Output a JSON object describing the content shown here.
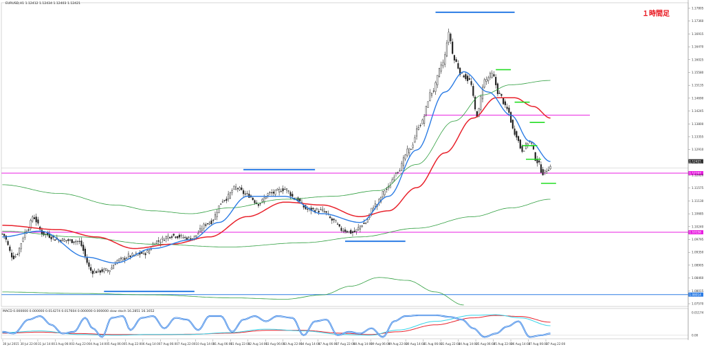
{
  "header": {
    "symbol_line": "EURUSD,H1  1.12412 1.12434 1.12403 1.12421",
    "annotation": "１時間足"
  },
  "indicator_header": "MACD 0.000000 0.000000 0.014274 0.017604 0.000000 0.000000  slow stoch 16.2851 16.1652",
  "colors": {
    "background": "#ffffff",
    "candles": "#222222",
    "ma_fast": "#2a7be4",
    "ma_mid": "#e8202a",
    "ma_slow": "#2e9e3e",
    "support_resistance": "#e81ee0",
    "annotation_lines": "#2a7be4",
    "green_marks": "#22dd22",
    "osc_blue": "#2a7be4",
    "osc_cyan": "#35d3e8",
    "osc_red": "#e8202a",
    "annotation_text": "#e8111a"
  },
  "chart_data": [
    {
      "type": "candlestick",
      "title": "EURUSD,H1",
      "ylim": [
        1.076,
        1.1808
      ],
      "y_ticks": [
        "1.17805",
        "1.17360",
        "1.16915",
        "1.16470",
        "1.16025",
        "1.15580",
        "1.15135",
        "1.14690",
        "1.14245",
        "1.13800",
        "1.13355",
        "1.12910",
        "1.12465",
        "1.12020",
        "1.11575",
        "1.11130",
        "1.10685",
        "1.10240",
        "1.09795",
        "1.09350",
        "1.08905",
        "1.08460",
        "1.08015",
        "1.07570"
      ],
      "current_price": "1.12421",
      "price_boxes": [
        "1.12421",
        "1.12197",
        "1.10158",
        "1.08014"
      ],
      "horizontal_lines": [
        {
          "kind": "magenta",
          "price": 1.142,
          "label": ""
        },
        {
          "kind": "magenta",
          "price": 1.122,
          "label": "1.12197"
        },
        {
          "kind": "magenta",
          "price": 1.1016,
          "label": "1.10158"
        },
        {
          "kind": "blue",
          "price": 1.0801,
          "label": "1.08014"
        }
      ],
      "x_labels": [
        "30 Jul 2015",
        "30 Jul 22:00",
        "31 Jul 14:00",
        "3 Aug 06:00",
        "3 Aug 22:00",
        "4 Aug 14:00",
        "5 Aug 06:00",
        "5 Aug 22:00",
        "6 Aug 14:00",
        "7 Aug 06:00",
        "7 Aug 22:00",
        "10 Aug 14:00",
        "11 Aug 06:00",
        "11 Aug 22:00",
        "12 Aug 14:00",
        "13 Aug 06:00",
        "13 Aug 22:00",
        "14 Aug 14:00",
        "17 Aug 06:00",
        "17 Aug 22:00",
        "18 Aug 14:00",
        "19 Aug 06:00",
        "19 Aug 22:00",
        "20 Aug 14:00",
        "21 Aug 06:00",
        "21 Aug 22:00",
        "24 Aug 14:00",
        "25 Aug 06:00",
        "25 Aug 22:00",
        "26 Aug 14:00",
        "27 Aug 06:00",
        "27 Aug 22:00"
      ],
      "key_points": [
        {
          "idx": 0,
          "p": 1.101
        },
        {
          "idx": 6,
          "p": 1.093
        },
        {
          "idx": 14,
          "p": 1.103
        },
        {
          "idx": 16,
          "p": 1.107
        },
        {
          "idx": 22,
          "p": 1.101
        },
        {
          "idx": 30,
          "p": 1.099
        },
        {
          "idx": 40,
          "p": 1.0985
        },
        {
          "idx": 48,
          "p": 1.088
        },
        {
          "idx": 56,
          "p": 1.0885
        },
        {
          "idx": 62,
          "p": 1.092
        },
        {
          "idx": 68,
          "p": 1.0935
        },
        {
          "idx": 76,
          "p": 1.0945
        },
        {
          "idx": 82,
          "p": 1.0985
        },
        {
          "idx": 90,
          "p": 1.1005
        },
        {
          "idx": 100,
          "p": 1.0995
        },
        {
          "idx": 110,
          "p": 1.105
        },
        {
          "idx": 118,
          "p": 1.113
        },
        {
          "idx": 124,
          "p": 1.117
        },
        {
          "idx": 130,
          "p": 1.1145
        },
        {
          "idx": 136,
          "p": 1.1115
        },
        {
          "idx": 142,
          "p": 1.115
        },
        {
          "idx": 150,
          "p": 1.1165
        },
        {
          "idx": 156,
          "p": 1.113
        },
        {
          "idx": 162,
          "p": 1.1095
        },
        {
          "idx": 170,
          "p": 1.109
        },
        {
          "idx": 176,
          "p": 1.1055
        },
        {
          "idx": 180,
          "p": 1.1025
        },
        {
          "idx": 186,
          "p": 1.1015
        },
        {
          "idx": 192,
          "p": 1.1045
        },
        {
          "idx": 198,
          "p": 1.111
        },
        {
          "idx": 204,
          "p": 1.1165
        },
        {
          "idx": 210,
          "p": 1.123
        },
        {
          "idx": 216,
          "p": 1.13
        },
        {
          "idx": 222,
          "p": 1.139
        },
        {
          "idx": 228,
          "p": 1.15
        },
        {
          "idx": 234,
          "p": 1.16
        },
        {
          "idx": 237,
          "p": 1.17
        },
        {
          "idx": 240,
          "p": 1.161
        },
        {
          "idx": 244,
          "p": 1.156
        },
        {
          "idx": 248,
          "p": 1.154
        },
        {
          "idx": 252,
          "p": 1.142
        },
        {
          "idx": 256,
          "p": 1.154
        },
        {
          "idx": 260,
          "p": 1.156
        },
        {
          "idx": 264,
          "p": 1.149
        },
        {
          "idx": 268,
          "p": 1.144
        },
        {
          "idx": 272,
          "p": 1.136
        },
        {
          "idx": 276,
          "p": 1.13
        },
        {
          "idx": 280,
          "p": 1.133
        },
        {
          "idx": 284,
          "p": 1.126
        },
        {
          "idx": 287,
          "p": 1.122
        },
        {
          "idx": 291,
          "p": 1.1242
        }
      ],
      "ma_fast": [
        {
          "idx": 0,
          "p": 1.1
        },
        {
          "idx": 20,
          "p": 1.102
        },
        {
          "idx": 45,
          "p": 1.093
        },
        {
          "idx": 60,
          "p": 1.091
        },
        {
          "idx": 80,
          "p": 1.096
        },
        {
          "idx": 100,
          "p": 1.099
        },
        {
          "idx": 115,
          "p": 1.105
        },
        {
          "idx": 130,
          "p": 1.114
        },
        {
          "idx": 150,
          "p": 1.114
        },
        {
          "idx": 170,
          "p": 1.108
        },
        {
          "idx": 190,
          "p": 1.105
        },
        {
          "idx": 205,
          "p": 1.114
        },
        {
          "idx": 220,
          "p": 1.13
        },
        {
          "idx": 235,
          "p": 1.15
        },
        {
          "idx": 245,
          "p": 1.157
        },
        {
          "idx": 258,
          "p": 1.15
        },
        {
          "idx": 270,
          "p": 1.142
        },
        {
          "idx": 280,
          "p": 1.133
        },
        {
          "idx": 291,
          "p": 1.126
        }
      ],
      "ma_mid": [
        {
          "idx": 0,
          "p": 1.104
        },
        {
          "idx": 30,
          "p": 1.1025
        },
        {
          "idx": 50,
          "p": 1.1
        },
        {
          "idx": 70,
          "p": 1.096
        },
        {
          "idx": 90,
          "p": 1.0975
        },
        {
          "idx": 110,
          "p": 1.1
        },
        {
          "idx": 130,
          "p": 1.107
        },
        {
          "idx": 150,
          "p": 1.112
        },
        {
          "idx": 170,
          "p": 1.111
        },
        {
          "idx": 190,
          "p": 1.107
        },
        {
          "idx": 205,
          "p": 1.109
        },
        {
          "idx": 220,
          "p": 1.117
        },
        {
          "idx": 235,
          "p": 1.129
        },
        {
          "idx": 250,
          "p": 1.141
        },
        {
          "idx": 262,
          "p": 1.148
        },
        {
          "idx": 272,
          "p": 1.148
        },
        {
          "idx": 282,
          "p": 1.145
        },
        {
          "idx": 291,
          "p": 1.141
        }
      ],
      "ma_slow": [
        {
          "idx": 0,
          "p": 1.118
        },
        {
          "idx": 30,
          "p": 1.115
        },
        {
          "idx": 60,
          "p": 1.111
        },
        {
          "idx": 80,
          "p": 1.109
        },
        {
          "idx": 100,
          "p": 1.108
        },
        {
          "idx": 120,
          "p": 1.11
        },
        {
          "idx": 150,
          "p": 1.113
        },
        {
          "idx": 175,
          "p": 1.114
        },
        {
          "idx": 200,
          "p": 1.116
        },
        {
          "idx": 220,
          "p": 1.125
        },
        {
          "idx": 240,
          "p": 1.14
        },
        {
          "idx": 255,
          "p": 1.149
        },
        {
          "idx": 270,
          "p": 1.1525
        },
        {
          "idx": 291,
          "p": 1.154
        }
      ],
      "ma_slow2": [
        {
          "idx": 0,
          "p": 1.102
        },
        {
          "idx": 40,
          "p": 1.1
        },
        {
          "idx": 80,
          "p": 1.0975
        },
        {
          "idx": 120,
          "p": 1.0965
        },
        {
          "idx": 160,
          "p": 1.098
        },
        {
          "idx": 190,
          "p": 1.1
        },
        {
          "idx": 220,
          "p": 1.103
        },
        {
          "idx": 250,
          "p": 1.107
        },
        {
          "idx": 270,
          "p": 1.11
        },
        {
          "idx": 291,
          "p": 1.113
        }
      ],
      "ma_bottom": [
        {
          "idx": 0,
          "p": 1.081
        },
        {
          "idx": 40,
          "p": 1.0805
        },
        {
          "idx": 80,
          "p": 1.08
        },
        {
          "idx": 120,
          "p": 1.079
        },
        {
          "idx": 150,
          "p": 1.0785
        },
        {
          "idx": 170,
          "p": 1.08
        },
        {
          "idx": 185,
          "p": 1.083
        },
        {
          "idx": 200,
          "p": 1.086
        },
        {
          "idx": 215,
          "p": 1.085
        },
        {
          "idx": 230,
          "p": 1.081
        },
        {
          "idx": 245,
          "p": 1.0765
        }
      ],
      "blue_annotation_lines": [
        {
          "x0": 230,
          "x1": 272,
          "price": 1.1775
        },
        {
          "x0": 128,
          "x1": 166,
          "price": 1.1232
        },
        {
          "x0": 182,
          "x1": 214,
          "price": 1.0985
        },
        {
          "x0": 54,
          "x1": 102,
          "price": 1.0812
        }
      ],
      "green_marks": [
        {
          "x0": 262,
          "x1": 270,
          "price": 1.1577
        },
        {
          "x0": 272,
          "x1": 280,
          "price": 1.1465
        },
        {
          "x0": 280,
          "x1": 288,
          "price": 1.1395
        },
        {
          "x0": 276,
          "x1": 284,
          "price": 1.1315
        },
        {
          "x0": 278,
          "x1": 286,
          "price": 1.1268
        },
        {
          "x0": 286,
          "x1": 294,
          "price": 1.1185
        }
      ]
    },
    {
      "type": "line",
      "title": "MACD / slow stoch",
      "ylim": [
        -0.002,
        0.0122
      ],
      "y_ticks": [
        "0.01174",
        "0.00"
      ],
      "stoch_knots": [
        {
          "idx": 0,
          "v": 0.002
        },
        {
          "idx": 6,
          "v": 0.001
        },
        {
          "idx": 14,
          "v": 0.009
        },
        {
          "idx": 20,
          "v": 0.011
        },
        {
          "idx": 26,
          "v": 0.006
        },
        {
          "idx": 32,
          "v": 0.001
        },
        {
          "idx": 38,
          "v": 0.002
        },
        {
          "idx": 44,
          "v": 0.01
        },
        {
          "idx": 48,
          "v": 0.004
        },
        {
          "idx": 53,
          "v": -0.001
        },
        {
          "idx": 58,
          "v": 0.01
        },
        {
          "idx": 64,
          "v": 0.011
        },
        {
          "idx": 68,
          "v": 0.003
        },
        {
          "idx": 74,
          "v": 0.01
        },
        {
          "idx": 80,
          "v": 0.011
        },
        {
          "idx": 86,
          "v": 0.004
        },
        {
          "idx": 92,
          "v": 0.01
        },
        {
          "idx": 98,
          "v": 0.009
        },
        {
          "idx": 104,
          "v": 0.003
        },
        {
          "idx": 110,
          "v": 0.011
        },
        {
          "idx": 116,
          "v": 0.011
        },
        {
          "idx": 122,
          "v": 0.002
        },
        {
          "idx": 128,
          "v": 0.009
        },
        {
          "idx": 134,
          "v": 0.011
        },
        {
          "idx": 140,
          "v": 0.008
        },
        {
          "idx": 146,
          "v": 0.011
        },
        {
          "idx": 154,
          "v": 0.01
        },
        {
          "idx": 160,
          "v": 0.0
        },
        {
          "idx": 166,
          "v": 0.008
        },
        {
          "idx": 172,
          "v": 0.009
        },
        {
          "idx": 178,
          "v": 0.0
        },
        {
          "idx": 184,
          "v": 0.002
        },
        {
          "idx": 190,
          "v": 0.001
        },
        {
          "idx": 196,
          "v": 0.004
        },
        {
          "idx": 202,
          "v": -0.001
        },
        {
          "idx": 208,
          "v": 0.008
        },
        {
          "idx": 214,
          "v": 0.011
        },
        {
          "idx": 222,
          "v": 0.0115
        },
        {
          "idx": 230,
          "v": 0.0115
        },
        {
          "idx": 238,
          "v": 0.0105
        },
        {
          "idx": 244,
          "v": 0.009
        },
        {
          "idx": 250,
          "v": 0.004
        },
        {
          "idx": 256,
          "v": -0.001
        },
        {
          "idx": 262,
          "v": 0.001
        },
        {
          "idx": 268,
          "v": 0.005
        },
        {
          "idx": 274,
          "v": 0.008
        },
        {
          "idx": 280,
          "v": -0.001
        },
        {
          "idx": 286,
          "v": 0.0
        },
        {
          "idx": 291,
          "v": 0.001
        }
      ],
      "macd_knots": [
        {
          "idx": 0,
          "v": 0.0015
        },
        {
          "idx": 20,
          "v": 0.0025
        },
        {
          "idx": 40,
          "v": 0.0005
        },
        {
          "idx": 60,
          "v": 0.0
        },
        {
          "idx": 80,
          "v": 0.0005
        },
        {
          "idx": 100,
          "v": 0.0005
        },
        {
          "idx": 120,
          "v": 0.0015
        },
        {
          "idx": 140,
          "v": 0.0035
        },
        {
          "idx": 160,
          "v": 0.0025
        },
        {
          "idx": 180,
          "v": 0.0005
        },
        {
          "idx": 195,
          "v": 0.0
        },
        {
          "idx": 210,
          "v": 0.003
        },
        {
          "idx": 230,
          "v": 0.008
        },
        {
          "idx": 250,
          "v": 0.0115
        },
        {
          "idx": 262,
          "v": 0.0118
        },
        {
          "idx": 275,
          "v": 0.01
        },
        {
          "idx": 291,
          "v": 0.0055
        }
      ],
      "signal_knots": [
        {
          "idx": 0,
          "v": 0.0012
        },
        {
          "idx": 20,
          "v": 0.0018
        },
        {
          "idx": 40,
          "v": 0.001
        },
        {
          "idx": 60,
          "v": 0.0004
        },
        {
          "idx": 80,
          "v": 0.0004
        },
        {
          "idx": 100,
          "v": 0.0006
        },
        {
          "idx": 120,
          "v": 0.0012
        },
        {
          "idx": 140,
          "v": 0.0028
        },
        {
          "idx": 160,
          "v": 0.0028
        },
        {
          "idx": 180,
          "v": 0.0012
        },
        {
          "idx": 195,
          "v": 0.0004
        },
        {
          "idx": 210,
          "v": 0.002
        },
        {
          "idx": 230,
          "v": 0.006
        },
        {
          "idx": 250,
          "v": 0.01
        },
        {
          "idx": 262,
          "v": 0.0114
        },
        {
          "idx": 275,
          "v": 0.0108
        },
        {
          "idx": 291,
          "v": 0.0075
        }
      ]
    }
  ]
}
